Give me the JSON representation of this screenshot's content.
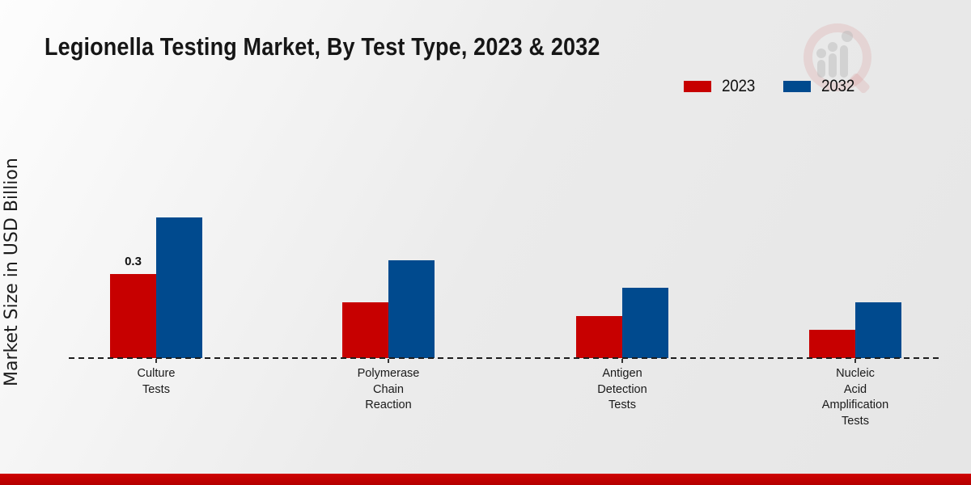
{
  "header": {
    "title": "Legionella Testing Market, By Test Type, 2023 & 2032"
  },
  "y_axis": {
    "label": "Market Size in USD Billion"
  },
  "legend": {
    "items": [
      {
        "label": "2023",
        "color": "#c70000"
      },
      {
        "label": "2032",
        "color": "#004a8e"
      }
    ]
  },
  "icons": {
    "watermark": "magnifier-bar-chart-logo"
  },
  "footer": {
    "accent_color": "#c00303"
  },
  "chart_data": {
    "type": "bar",
    "title": "Legionella Testing Market, By Test Type, 2023 & 2032",
    "xlabel": "",
    "ylabel": "Market Size in USD Billion",
    "categories": [
      "Culture Tests",
      "Polymerase Chain Reaction",
      "Antigen Detection Tests",
      "Nucleic Acid Amplification Tests"
    ],
    "series": [
      {
        "name": "2023",
        "color": "#c70000",
        "values": [
          0.3,
          0.2,
          0.15,
          0.1
        ]
      },
      {
        "name": "2032",
        "color": "#004a8e",
        "values": [
          0.5,
          0.35,
          0.25,
          0.2
        ]
      }
    ],
    "data_labels": [
      {
        "series": "2023",
        "category": "Culture Tests",
        "text": "0.3"
      }
    ],
    "ylim": [
      0,
      0.55
    ],
    "grid": false,
    "axis_style": "dashed-baseline",
    "legend_position": "top-right"
  }
}
